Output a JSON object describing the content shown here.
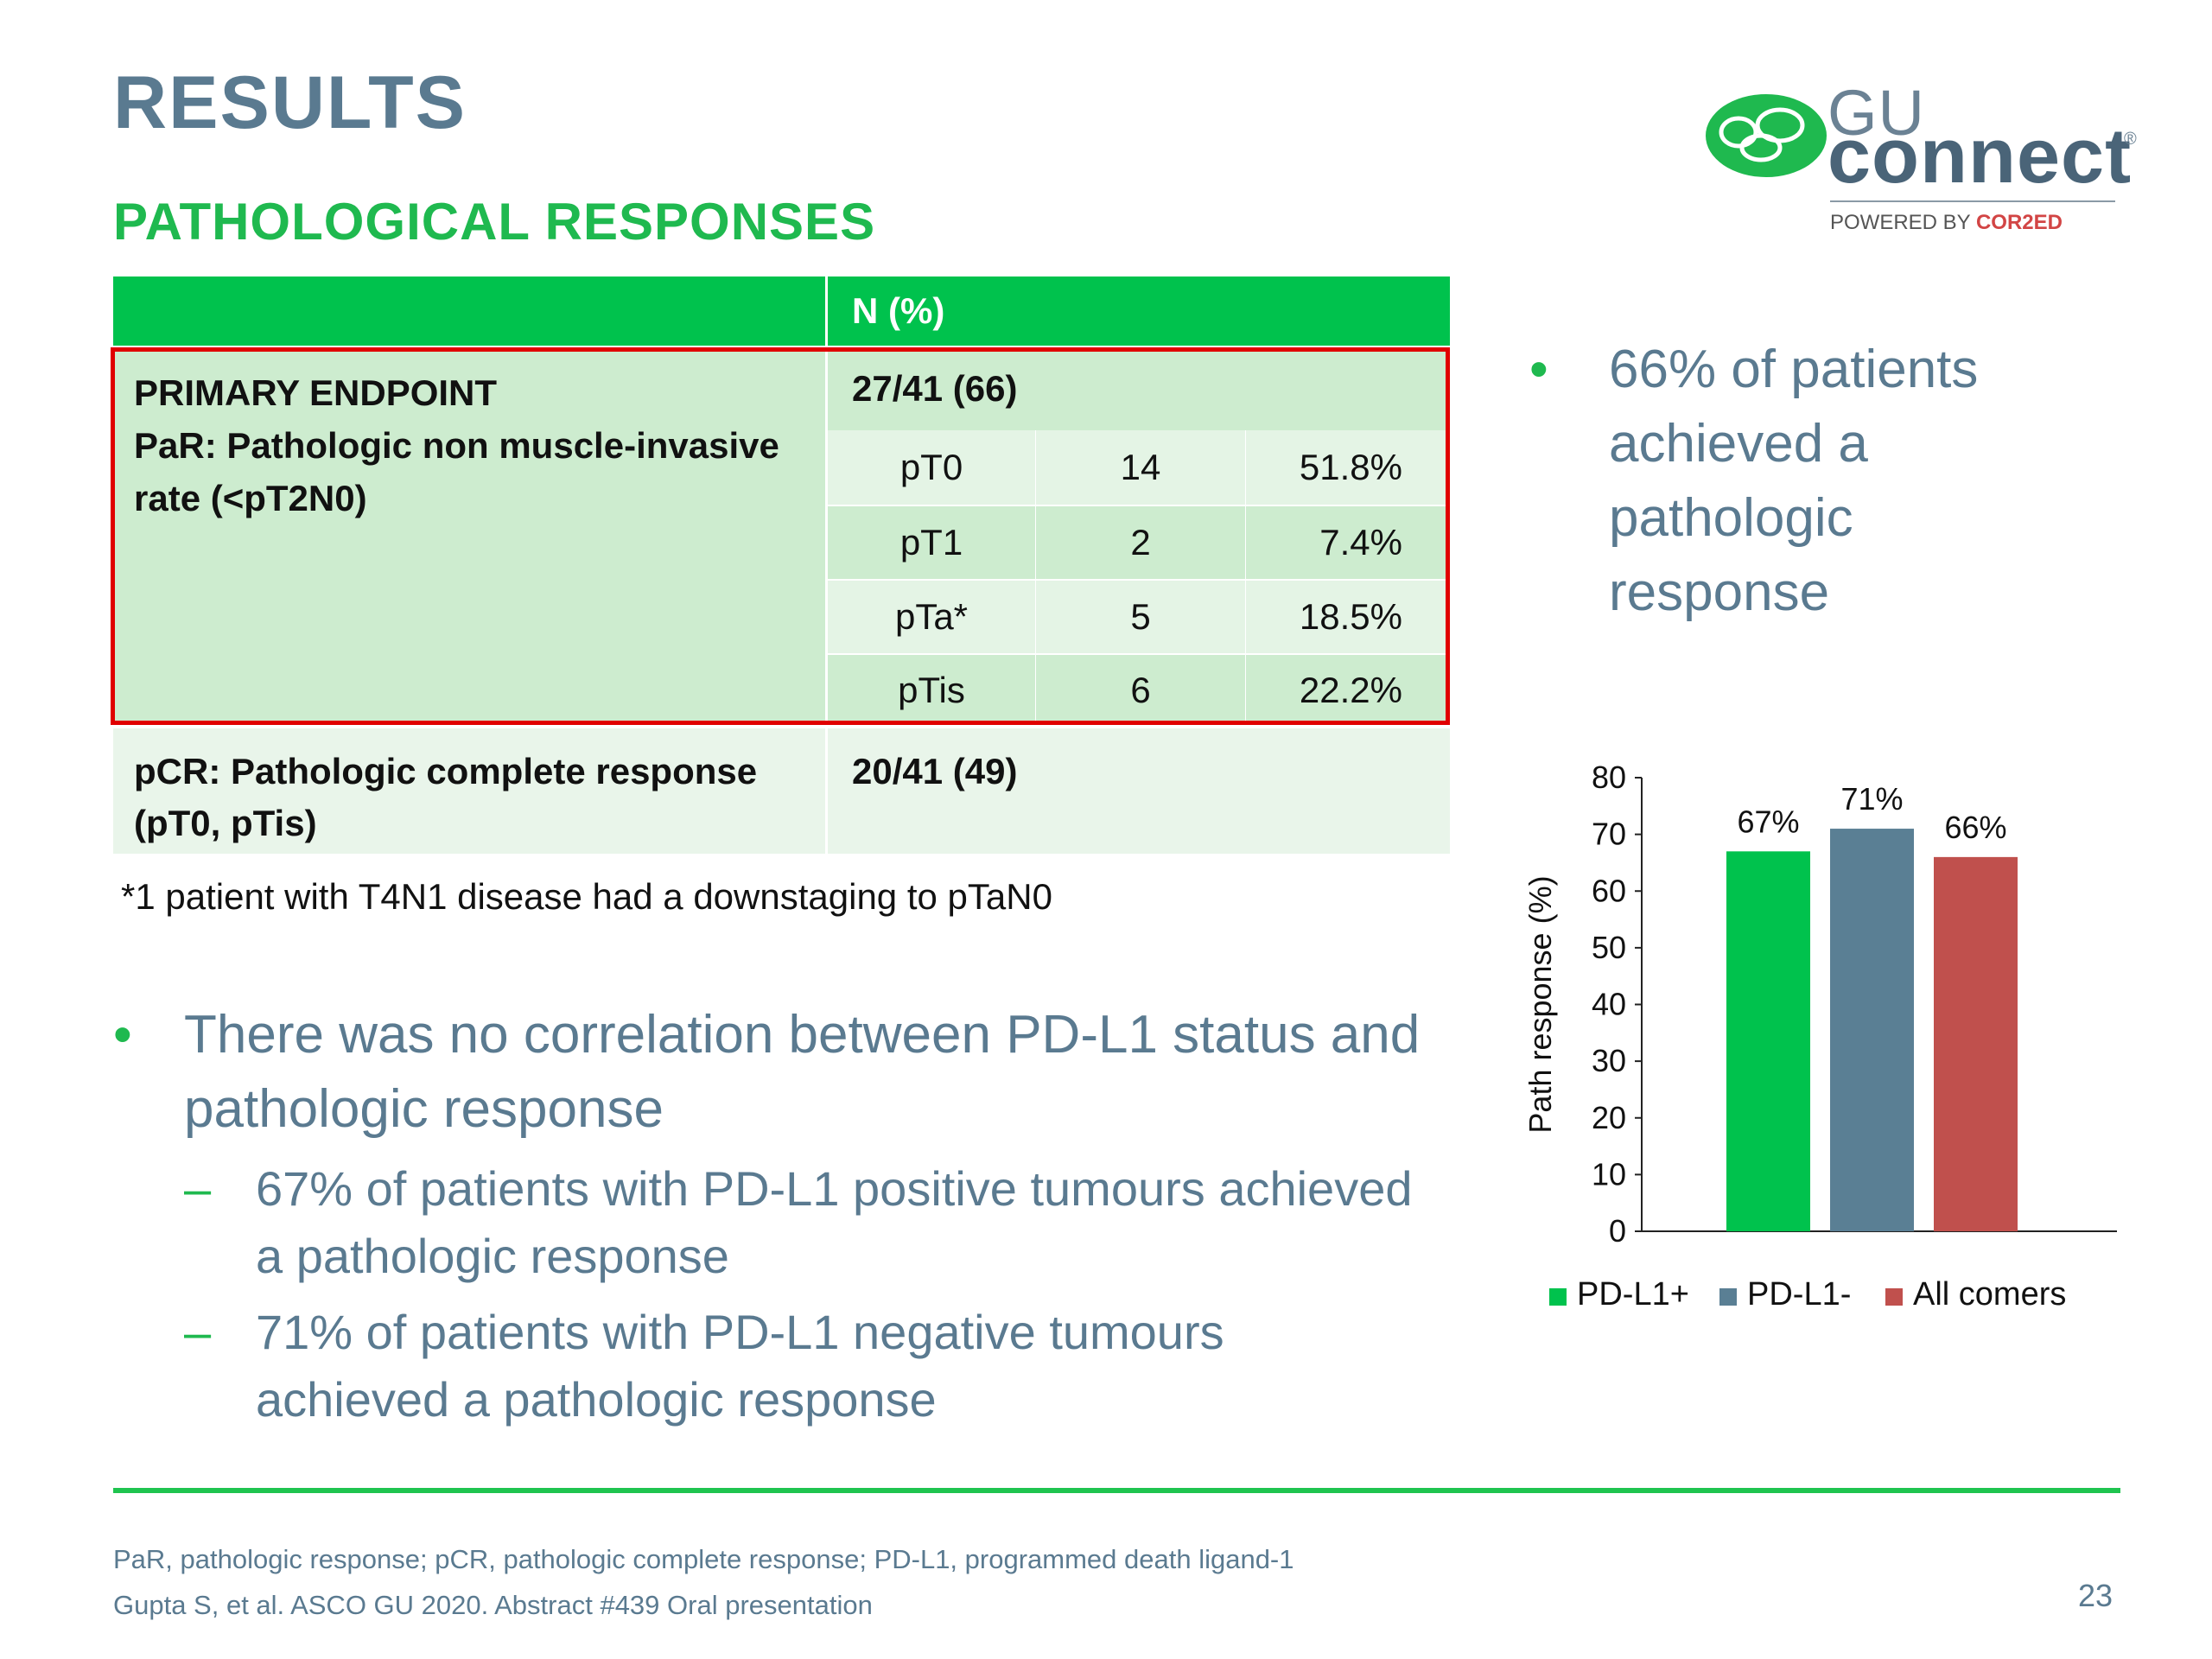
{
  "title": "RESULTS",
  "subtitle": "PATHOLOGICAL RESPONSES",
  "logo": {
    "line1": "GU",
    "line2": "connect",
    "registered": "®",
    "powered_prefix": "POWERED BY ",
    "powered_brand": "COR2ED"
  },
  "table": {
    "header": {
      "left": "",
      "right": "N (%)"
    },
    "primary": {
      "label_line1": "PRIMARY ENDPOINT",
      "label_line2": "PaR: Pathologic non muscle-invasive",
      "label_line3": "rate (<pT2N0)",
      "value": "27/41 (66)",
      "rows": [
        {
          "stage": "pT0",
          "n": "14",
          "pct": "51.8%"
        },
        {
          "stage": "pT1",
          "n": "2",
          "pct": "7.4%"
        },
        {
          "stage": "pTa*",
          "n": "5",
          "pct": "18.5%"
        },
        {
          "stage": "pTis",
          "n": "6",
          "pct": "22.2%"
        }
      ]
    },
    "pcr": {
      "label_line1": "pCR: Pathologic complete response",
      "label_line2": "(pT0, pTis)",
      "value": "20/41 (49)"
    }
  },
  "footnote": "*1 patient with T4N1 disease had a downstaging to pTaN0",
  "bullets": {
    "main": "There was no correlation between PD-L1 status and pathologic response",
    "sub1": "67% of patients with PD-L1 positive tumours achieved a pathologic response",
    "sub2": "71% of patients with PD-L1 negative tumours achieved a pathologic response",
    "right": "66% of patients achieved a pathologic response",
    "dot": "•",
    "dash": "–"
  },
  "chart_data": {
    "type": "bar",
    "categories": [
      "PD-L1+",
      "PD-L1-",
      "All comers"
    ],
    "values": [
      67,
      71,
      66
    ],
    "data_labels": [
      "67%",
      "71%",
      "66%"
    ],
    "colors": [
      "#00c24d",
      "#5a7f94",
      "#c0504d"
    ],
    "ylabel": "Path response (%)",
    "ylim": [
      0,
      80
    ],
    "yticks": [
      0,
      10,
      20,
      30,
      40,
      50,
      60,
      70,
      80
    ],
    "grid": false,
    "legend": "bottom"
  },
  "footer": {
    "abbreviations": "PaR, pathologic response; pCR, pathologic complete response; PD-L1, programmed death ligand-1",
    "reference": "Gupta S, et al. ASCO GU 2020. Abstract #439 Oral presentation",
    "page": "23"
  }
}
